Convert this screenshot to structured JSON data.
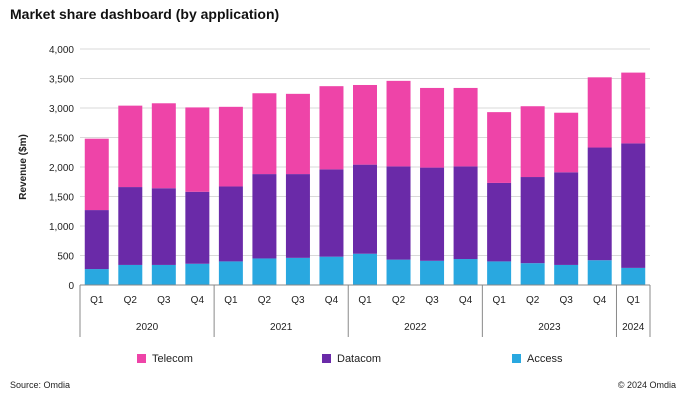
{
  "title": "Market share dashboard (by application)",
  "footer": {
    "source": "Source: Omdia",
    "copyright": "© 2024 Omdia"
  },
  "chart_data": {
    "type": "bar",
    "stacked": true,
    "title": "Market share dashboard (by application)",
    "ylabel": "Revenue ($m)",
    "xlabel": "",
    "ylim": [
      0,
      4000
    ],
    "yticks": [
      0,
      500,
      1000,
      1500,
      2000,
      2500,
      3000,
      3500,
      4000
    ],
    "ytick_labels": [
      "0",
      "500",
      "1,000",
      "1,500",
      "2,000",
      "2,500",
      "3,000",
      "3,500",
      "4,000"
    ],
    "grid": true,
    "legend_position": "bottom",
    "categories": [
      "Q1",
      "Q2",
      "Q3",
      "Q4",
      "Q1",
      "Q2",
      "Q3",
      "Q4",
      "Q1",
      "Q2",
      "Q3",
      "Q4",
      "Q1",
      "Q2",
      "Q3",
      "Q4",
      "Q1"
    ],
    "groups": [
      {
        "label": "2020",
        "count": 4
      },
      {
        "label": "2021",
        "count": 4
      },
      {
        "label": "2022",
        "count": 4
      },
      {
        "label": "2023",
        "count": 4
      },
      {
        "label": "2024",
        "count": 1
      }
    ],
    "series": [
      {
        "name": "Access",
        "color": "#29a8e0",
        "values": [
          270,
          340,
          340,
          360,
          400,
          450,
          460,
          480,
          530,
          430,
          410,
          440,
          400,
          370,
          340,
          420,
          290
        ]
      },
      {
        "name": "Datacom",
        "color": "#6a2aa8",
        "values": [
          1000,
          1320,
          1300,
          1220,
          1270,
          1430,
          1420,
          1480,
          1510,
          1580,
          1580,
          1570,
          1330,
          1460,
          1570,
          1910,
          2110
        ]
      },
      {
        "name": "Telecom",
        "color": "#ee44a8",
        "values": [
          1210,
          1380,
          1440,
          1430,
          1350,
          1370,
          1360,
          1410,
          1350,
          1450,
          1350,
          1330,
          1200,
          1200,
          1010,
          1190,
          1200
        ]
      }
    ],
    "legend_order": [
      "Telecom",
      "Datacom",
      "Access"
    ]
  }
}
